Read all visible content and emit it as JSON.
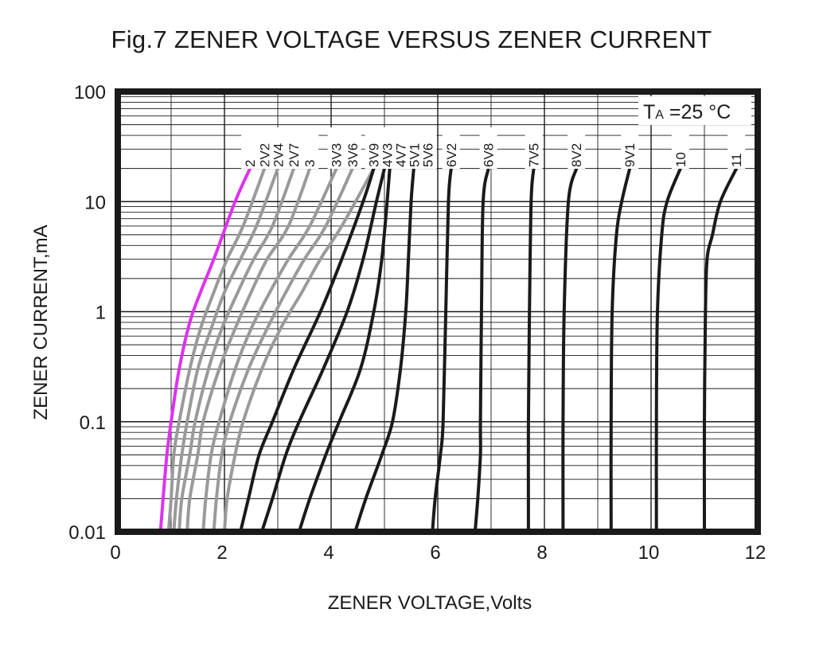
{
  "chart_data": {
    "type": "line",
    "title": "Fig.7 ZENER VOLTAGE VERSUS ZENER CURRENT",
    "xlabel": "ZENER VOLTAGE,Volts",
    "ylabel": "ZENER CURRENT,mA",
    "annotation": {
      "main": "T",
      "sub": "A",
      "rest": " =25 °C"
    },
    "xlim": [
      0,
      12
    ],
    "ylim": [
      0.01,
      100
    ],
    "yscale": "log",
    "grid": true,
    "xticks": [
      0,
      2,
      4,
      6,
      8,
      10,
      12
    ],
    "yticks": [
      0.01,
      0.1,
      1,
      10,
      100
    ],
    "ytick_labels": [
      "0.01",
      "0.1",
      "1",
      "10",
      "100"
    ],
    "colors": {
      "highlight": "#dd33ee",
      "gray": "#9a9a9a",
      "black": "#1a1a1a"
    },
    "series": [
      {
        "name": "2",
        "color": "highlight",
        "points": [
          [
            0.8,
            0.01
          ],
          [
            0.85,
            0.02
          ],
          [
            0.92,
            0.05
          ],
          [
            1.0,
            0.1
          ],
          [
            1.15,
            0.3
          ],
          [
            1.35,
            0.8
          ],
          [
            1.55,
            1.5
          ],
          [
            1.8,
            3
          ],
          [
            2.2,
            10
          ],
          [
            2.48,
            20
          ]
        ]
      },
      {
        "name": "2V2",
        "color": "gray",
        "points": [
          [
            0.95,
            0.01
          ],
          [
            1.0,
            0.02
          ],
          [
            1.05,
            0.05
          ],
          [
            1.15,
            0.1
          ],
          [
            1.35,
            0.3
          ],
          [
            1.55,
            0.7
          ],
          [
            1.8,
            1.5
          ],
          [
            2.05,
            3
          ],
          [
            2.35,
            6
          ],
          [
            2.75,
            20
          ]
        ]
      },
      {
        "name": "2V4",
        "color": "gray",
        "points": [
          [
            1.05,
            0.01
          ],
          [
            1.1,
            0.02
          ],
          [
            1.2,
            0.05
          ],
          [
            1.3,
            0.1
          ],
          [
            1.5,
            0.3
          ],
          [
            1.75,
            0.7
          ],
          [
            2.0,
            1.5
          ],
          [
            2.3,
            3
          ],
          [
            2.6,
            6
          ],
          [
            3.0,
            20
          ]
        ]
      },
      {
        "name": "2V7",
        "color": "gray",
        "points": [
          [
            1.15,
            0.01
          ],
          [
            1.2,
            0.02
          ],
          [
            1.35,
            0.05
          ],
          [
            1.45,
            0.1
          ],
          [
            1.7,
            0.3
          ],
          [
            1.95,
            0.7
          ],
          [
            2.25,
            1.5
          ],
          [
            2.55,
            3
          ],
          [
            2.9,
            6
          ],
          [
            3.3,
            20
          ]
        ]
      },
      {
        "name": "3",
        "color": "gray",
        "points": [
          [
            1.3,
            0.01
          ],
          [
            1.35,
            0.02
          ],
          [
            1.5,
            0.05
          ],
          [
            1.6,
            0.1
          ],
          [
            1.9,
            0.3
          ],
          [
            2.2,
            0.7
          ],
          [
            2.5,
            1.5
          ],
          [
            2.8,
            3
          ],
          [
            3.2,
            6
          ],
          [
            3.6,
            20
          ]
        ]
      },
      {
        "name": "3V3",
        "color": "gray",
        "points": [
          [
            1.6,
            0.01
          ],
          [
            1.65,
            0.02
          ],
          [
            1.75,
            0.05
          ],
          [
            1.9,
            0.1
          ],
          [
            2.2,
            0.3
          ],
          [
            2.5,
            0.7
          ],
          [
            2.85,
            1.5
          ],
          [
            3.2,
            3
          ],
          [
            3.6,
            6
          ],
          [
            4.1,
            20
          ]
        ]
      },
      {
        "name": "3V6",
        "color": "gray",
        "points": [
          [
            1.8,
            0.01
          ],
          [
            1.85,
            0.02
          ],
          [
            1.95,
            0.05
          ],
          [
            2.1,
            0.1
          ],
          [
            2.45,
            0.3
          ],
          [
            2.8,
            0.7
          ],
          [
            3.15,
            1.5
          ],
          [
            3.5,
            3
          ],
          [
            3.9,
            6
          ],
          [
            4.4,
            20
          ]
        ]
      },
      {
        "name": "3V9",
        "color": "gray",
        "points": [
          [
            2.0,
            0.01
          ],
          [
            2.05,
            0.02
          ],
          [
            2.2,
            0.05
          ],
          [
            2.35,
            0.1
          ],
          [
            2.7,
            0.3
          ],
          [
            3.05,
            0.7
          ],
          [
            3.45,
            1.5
          ],
          [
            3.8,
            3
          ],
          [
            4.2,
            6
          ],
          [
            4.8,
            20
          ]
        ]
      },
      {
        "name": "4V3",
        "color": "black",
        "points": [
          [
            2.3,
            0.01
          ],
          [
            2.45,
            0.02
          ],
          [
            2.65,
            0.05
          ],
          [
            2.9,
            0.1
          ],
          [
            3.3,
            0.3
          ],
          [
            3.8,
            1
          ],
          [
            4.2,
            3
          ],
          [
            4.6,
            10
          ],
          [
            4.8,
            20
          ]
        ]
      },
      {
        "name": "4V7",
        "color": "black",
        "points": [
          [
            2.7,
            0.01
          ],
          [
            2.9,
            0.02
          ],
          [
            3.15,
            0.05
          ],
          [
            3.4,
            0.1
          ],
          [
            3.85,
            0.3
          ],
          [
            4.3,
            1
          ],
          [
            4.6,
            3
          ],
          [
            4.85,
            10
          ],
          [
            5.0,
            20
          ]
        ]
      },
      {
        "name": "5V1",
        "color": "black",
        "points": [
          [
            3.4,
            0.01
          ],
          [
            3.6,
            0.02
          ],
          [
            3.9,
            0.05
          ],
          [
            4.15,
            0.1
          ],
          [
            4.55,
            0.3
          ],
          [
            4.8,
            1
          ],
          [
            4.95,
            3
          ],
          [
            5.05,
            10
          ],
          [
            5.1,
            20
          ]
        ]
      },
      {
        "name": "5V6",
        "color": "black",
        "points": [
          [
            4.45,
            0.01
          ],
          [
            4.65,
            0.02
          ],
          [
            4.95,
            0.05
          ],
          [
            5.15,
            0.1
          ],
          [
            5.3,
            0.3
          ],
          [
            5.4,
            1
          ],
          [
            5.45,
            3
          ],
          [
            5.5,
            10
          ],
          [
            5.55,
            20
          ]
        ]
      },
      {
        "name": "6V2",
        "color": "black",
        "points": [
          [
            5.9,
            0.01
          ],
          [
            5.95,
            0.02
          ],
          [
            6.05,
            0.05
          ],
          [
            6.1,
            0.1
          ],
          [
            6.15,
            1
          ],
          [
            6.2,
            10
          ],
          [
            6.25,
            20
          ]
        ]
      },
      {
        "name": "6V8",
        "color": "black",
        "points": [
          [
            6.7,
            0.01
          ],
          [
            6.75,
            0.02
          ],
          [
            6.8,
            0.05
          ],
          [
            6.8,
            0.1
          ],
          [
            6.82,
            1
          ],
          [
            6.85,
            10
          ],
          [
            6.95,
            20
          ]
        ]
      },
      {
        "name": "7V5",
        "color": "black",
        "points": [
          [
            7.7,
            0.01
          ],
          [
            7.7,
            0.1
          ],
          [
            7.72,
            1
          ],
          [
            7.75,
            10
          ],
          [
            7.8,
            20
          ]
        ]
      },
      {
        "name": "8V2",
        "color": "black",
        "points": [
          [
            8.35,
            0.01
          ],
          [
            8.35,
            0.1
          ],
          [
            8.37,
            1
          ],
          [
            8.45,
            10
          ],
          [
            8.6,
            20
          ]
        ]
      },
      {
        "name": "9V1",
        "color": "black",
        "points": [
          [
            9.25,
            0.01
          ],
          [
            9.25,
            0.1
          ],
          [
            9.27,
            1
          ],
          [
            9.35,
            5
          ],
          [
            9.45,
            10
          ],
          [
            9.6,
            20
          ]
        ]
      },
      {
        "name": "10",
        "color": "black",
        "points": [
          [
            10.1,
            0.01
          ],
          [
            10.1,
            0.1
          ],
          [
            10.12,
            1
          ],
          [
            10.2,
            5
          ],
          [
            10.3,
            10
          ],
          [
            10.55,
            20
          ]
        ]
      },
      {
        "name": "11",
        "color": "black",
        "points": [
          [
            11.0,
            0.01
          ],
          [
            11.0,
            0.1
          ],
          [
            11.02,
            1
          ],
          [
            11.05,
            3
          ],
          [
            11.15,
            5
          ],
          [
            11.3,
            10
          ],
          [
            11.6,
            20
          ]
        ]
      }
    ]
  }
}
